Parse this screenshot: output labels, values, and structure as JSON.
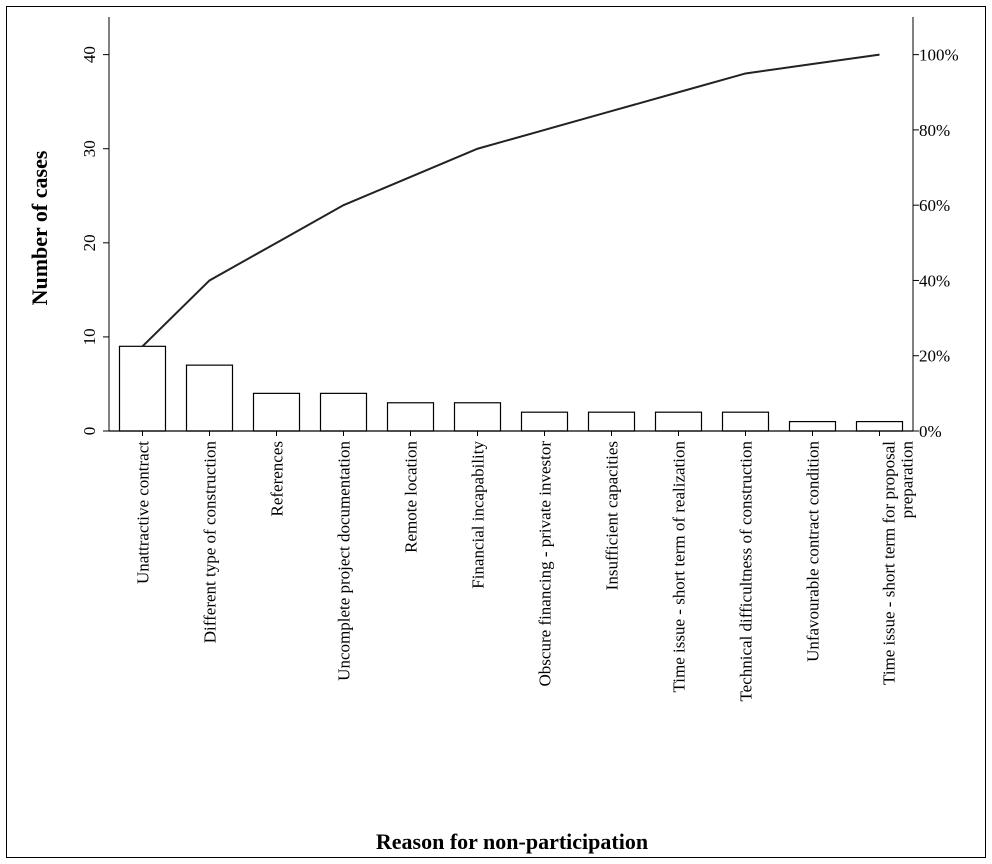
{
  "chart_data": {
    "type": "bar",
    "categories": [
      "Unattractive contract",
      "Different type of construction",
      "References",
      "Uncomplete project documentation",
      "Remote location",
      "Financial incapability",
      "Obscure financing - private investor",
      "Insufficient capacities",
      "Time issue - short term of realization",
      "Technical difficultness of construction",
      "Unfavourable contract condition",
      "Time issue - short term for proposal preparation"
    ],
    "series": [
      {
        "values": [
          9,
          7,
          4,
          4,
          3,
          3,
          2,
          2,
          2,
          2,
          1,
          1
        ]
      },
      {
        "axis": "right",
        "type": "line",
        "values": [
          22.5,
          40,
          50,
          60,
          67.5,
          75,
          80,
          85,
          90,
          95,
          97.5,
          100
        ]
      }
    ],
    "xlabel": "Reason for non-participation",
    "ylabel": "Number of cases",
    "ylim": [
      0,
      44
    ],
    "y_ticks": [
      "0",
      "10",
      "20",
      "30",
      "40"
    ],
    "y2lim": [
      0,
      110
    ],
    "y2_ticks": [
      "0%",
      "20%",
      "40%",
      "60%",
      "80%",
      "100%"
    ],
    "grid": false,
    "legend": "none"
  }
}
